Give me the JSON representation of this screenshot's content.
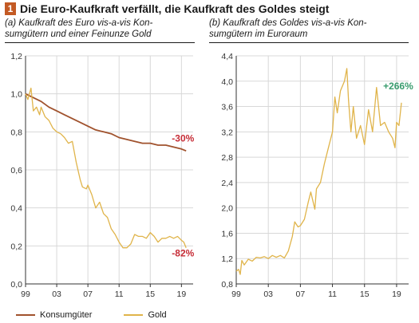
{
  "figure": {
    "number": "1",
    "title": "Die Euro-Kaufkraft verfällt, die Kaufkraft des Goldes steigt"
  },
  "colors": {
    "konsum": "#a0522d",
    "gold": "#e0b44a",
    "neg": "#c62c36",
    "pos": "#3a9c6e",
    "grid": "#d8d8d8",
    "badge": "#c35a24"
  },
  "legend": [
    {
      "label": "Konsumgüter",
      "color": "#a0522d"
    },
    {
      "label": "Gold",
      "color": "#e0b44a"
    }
  ],
  "chart_data": [
    {
      "type": "line",
      "subtitle": "(a) Kaufkraft des Euro vis-a-vis Konsumgütern und einer Feinunze Gold",
      "subtitle_lines": [
        "(a) Kaufkraft des Euro vis-a-vis Kon-",
        "sumgütern und einer Feinunze Gold"
      ],
      "ylim": [
        0,
        1.2
      ],
      "yticks": [
        "0,0",
        "0,2",
        "0,4",
        "0,6",
        "0,8",
        "1,0",
        "1,2"
      ],
      "xlim": [
        1999,
        2020.5
      ],
      "xticks": [
        {
          "v": 1999,
          "label": "99"
        },
        {
          "v": 2003,
          "label": "03"
        },
        {
          "v": 2007,
          "label": "07"
        },
        {
          "v": 2011,
          "label": "11"
        },
        {
          "v": 2015,
          "label": "15"
        },
        {
          "v": 2019,
          "label": "19"
        }
      ],
      "grid": true,
      "series": [
        {
          "name": "Konsumgüter",
          "color": "#a0522d",
          "x": [
            1999.0,
            2000.0,
            2001.0,
            2002.0,
            2003.0,
            2004.0,
            2005.0,
            2006.0,
            2007.0,
            2008.0,
            2009.0,
            2010.0,
            2011.0,
            2012.0,
            2013.0,
            2014.0,
            2015.0,
            2016.0,
            2017.0,
            2018.0,
            2019.0,
            2019.6
          ],
          "y": [
            1.0,
            0.98,
            0.96,
            0.93,
            0.91,
            0.89,
            0.87,
            0.85,
            0.83,
            0.81,
            0.8,
            0.79,
            0.77,
            0.76,
            0.75,
            0.74,
            0.74,
            0.73,
            0.73,
            0.72,
            0.71,
            0.7
          ]
        },
        {
          "name": "Gold",
          "color": "#e0b44a",
          "x": [
            1999.0,
            1999.3,
            1999.7,
            2000.0,
            2000.4,
            2000.8,
            2001.0,
            2001.5,
            2002.0,
            2002.5,
            2003.0,
            2003.5,
            2004.0,
            2004.5,
            2005.0,
            2005.5,
            2006.0,
            2006.3,
            2006.8,
            2007.0,
            2007.5,
            2008.0,
            2008.5,
            2009.0,
            2009.5,
            2010.0,
            2010.5,
            2011.0,
            2011.5,
            2012.0,
            2012.5,
            2013.0,
            2013.5,
            2014.0,
            2014.5,
            2015.0,
            2015.5,
            2016.0,
            2016.5,
            2017.0,
            2017.5,
            2018.0,
            2018.5,
            2019.0,
            2019.3,
            2019.6
          ],
          "y": [
            1.0,
            0.97,
            1.03,
            0.91,
            0.93,
            0.89,
            0.93,
            0.88,
            0.86,
            0.82,
            0.8,
            0.79,
            0.77,
            0.74,
            0.75,
            0.64,
            0.55,
            0.51,
            0.5,
            0.52,
            0.47,
            0.4,
            0.43,
            0.37,
            0.35,
            0.29,
            0.26,
            0.22,
            0.19,
            0.19,
            0.21,
            0.26,
            0.25,
            0.25,
            0.24,
            0.27,
            0.25,
            0.22,
            0.24,
            0.24,
            0.25,
            0.24,
            0.25,
            0.23,
            0.22,
            0.19
          ]
        }
      ],
      "annotations": [
        {
          "text": "-30%",
          "x": 2019.2,
          "y": 0.75,
          "color": "#c62c36"
        },
        {
          "text": "-82%",
          "x": 2019.2,
          "y": 0.145,
          "color": "#c62c36"
        }
      ]
    },
    {
      "type": "line",
      "subtitle": "(b) Kaufkraft des Goldes vis-a-vis Konsumgütern im Euroraum",
      "subtitle_lines": [
        "(b) Kaufkraft des Goldes vis-a-vis Kon-",
        "sumgütern im Euroraum"
      ],
      "ylim": [
        0.8,
        4.4
      ],
      "yticks": [
        "0,8",
        "1,2",
        "1,6",
        "2,0",
        "2,4",
        "2,8",
        "3,2",
        "3,6",
        "4,0",
        "4,4"
      ],
      "xlim": [
        1999,
        2020.5
      ],
      "xticks": [
        {
          "v": 1999,
          "label": "99"
        },
        {
          "v": 2003,
          "label": "03"
        },
        {
          "v": 2007,
          "label": "07"
        },
        {
          "v": 2011,
          "label": "11"
        },
        {
          "v": 2015,
          "label": "15"
        },
        {
          "v": 2019,
          "label": "19"
        }
      ],
      "grid": true,
      "series": [
        {
          "name": "Gold",
          "color": "#e0b44a",
          "x": [
            1999.0,
            1999.3,
            1999.5,
            1999.7,
            2000.0,
            2000.5,
            2001.0,
            2001.5,
            2002.0,
            2002.5,
            2003.0,
            2003.5,
            2004.0,
            2004.5,
            2005.0,
            2005.5,
            2006.0,
            2006.3,
            2006.7,
            2007.0,
            2007.5,
            2008.0,
            2008.3,
            2008.8,
            2009.0,
            2009.5,
            2010.0,
            2010.5,
            2011.0,
            2011.3,
            2011.6,
            2012.0,
            2012.5,
            2012.8,
            2013.0,
            2013.3,
            2013.6,
            2014.0,
            2014.5,
            2015.0,
            2015.5,
            2016.0,
            2016.5,
            2017.0,
            2017.5,
            2018.0,
            2018.5,
            2018.8,
            2019.0,
            2019.3,
            2019.6
          ],
          "y": [
            1.0,
            1.03,
            0.95,
            1.17,
            1.1,
            1.19,
            1.16,
            1.22,
            1.21,
            1.23,
            1.2,
            1.25,
            1.22,
            1.25,
            1.21,
            1.32,
            1.55,
            1.78,
            1.7,
            1.72,
            1.82,
            2.1,
            2.25,
            1.98,
            2.3,
            2.4,
            2.7,
            2.95,
            3.2,
            3.75,
            3.5,
            3.85,
            4.0,
            4.2,
            3.7,
            3.2,
            3.6,
            3.1,
            3.3,
            3.0,
            3.55,
            3.2,
            3.9,
            3.3,
            3.35,
            3.2,
            3.1,
            2.95,
            3.35,
            3.3,
            3.66
          ]
        }
      ],
      "annotations": [
        {
          "text": "+266%",
          "x": 2019.2,
          "y": 3.87,
          "color": "#3a9c6e"
        }
      ]
    }
  ]
}
